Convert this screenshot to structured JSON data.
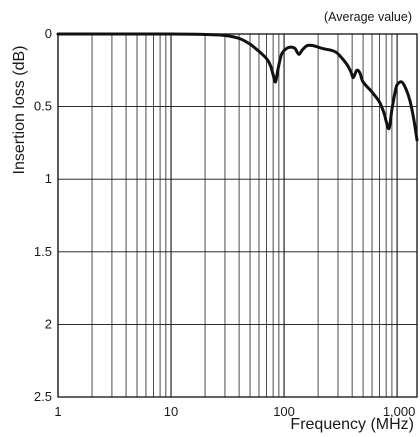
{
  "chart_data": {
    "type": "line",
    "title": "",
    "annotation": "(Average value)",
    "xlabel": "Frequency (MHz)",
    "ylabel": "Insertion loss (dB)",
    "xscale": "log",
    "xlim": [
      1,
      1500
    ],
    "ylim": [
      0,
      2.5
    ],
    "y_inverted": true,
    "grid": true,
    "x_tick_labels": [
      {
        "value": 1,
        "label": "1"
      },
      {
        "value": 10,
        "label": "10"
      },
      {
        "value": 100,
        "label": "100"
      },
      {
        "value": 1000,
        "label": "1,000"
      }
    ],
    "y_tick_labels": [
      {
        "value": 0,
        "label": "0"
      },
      {
        "value": 0.5,
        "label": "0.5"
      },
      {
        "value": 1,
        "label": "1"
      },
      {
        "value": 1.5,
        "label": "1.5"
      },
      {
        "value": 2,
        "label": "2"
      },
      {
        "value": 2.5,
        "label": "2.5"
      }
    ],
    "series": [
      {
        "color": "#111111",
        "x": [
          1,
          2,
          5,
          10,
          20,
          30,
          40,
          50,
          60,
          70,
          76,
          80,
          84,
          88,
          95,
          105,
          115,
          125,
          135,
          145,
          160,
          180,
          220,
          280,
          320,
          360,
          390,
          410,
          440,
          470,
          500,
          600,
          700,
          770,
          800,
          850,
          900,
          960,
          1000,
          1100,
          1200,
          1300,
          1400,
          1500
        ],
        "y": [
          0.0,
          0.0,
          0.0,
          0.0,
          0.003,
          0.01,
          0.03,
          0.07,
          0.12,
          0.17,
          0.22,
          0.28,
          0.33,
          0.25,
          0.14,
          0.1,
          0.09,
          0.1,
          0.14,
          0.11,
          0.08,
          0.08,
          0.1,
          0.12,
          0.16,
          0.21,
          0.26,
          0.3,
          0.25,
          0.27,
          0.33,
          0.4,
          0.47,
          0.55,
          0.6,
          0.65,
          0.52,
          0.4,
          0.35,
          0.33,
          0.38,
          0.46,
          0.58,
          0.73
        ]
      }
    ]
  }
}
